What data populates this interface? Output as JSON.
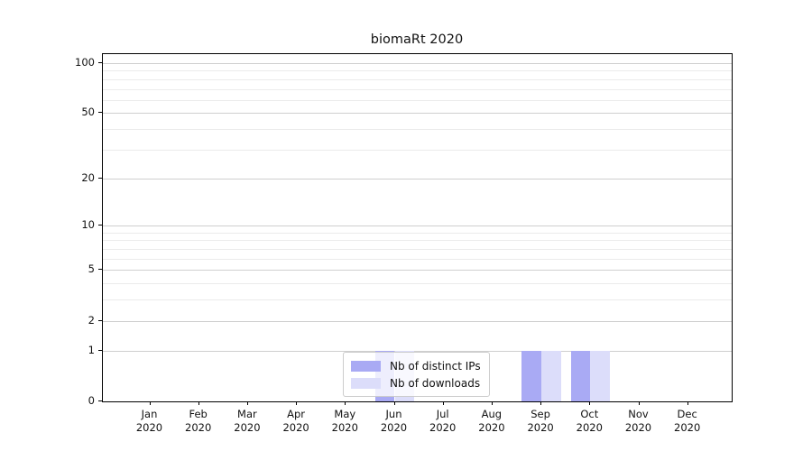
{
  "title": "biomaRt 2020",
  "colors": {
    "distinct_ips_bar": "#a9aaf4",
    "downloads_bar": "#dcddfa",
    "grid_major": "#cfcfcf",
    "grid_minor": "#ebebeb",
    "axis": "#000000",
    "legend_border": "#cccccc"
  },
  "chart_data": {
    "type": "bar",
    "title": "biomaRt 2020",
    "categories": [
      "Jan",
      "Feb",
      "Mar",
      "Apr",
      "May",
      "Jun",
      "Jul",
      "Aug",
      "Sep",
      "Oct",
      "Nov",
      "Dec"
    ],
    "x_year_label": "2020",
    "series": [
      {
        "name": "Nb of distinct IPs",
        "color": "#a9aaf4",
        "values": [
          0,
          0,
          0,
          0,
          0,
          1,
          0,
          0,
          1,
          1,
          0,
          0
        ]
      },
      {
        "name": "Nb of downloads",
        "color": "#dcddfa",
        "values": [
          0,
          0,
          0,
          0,
          0,
          1,
          0,
          0,
          1,
          1,
          0,
          0
        ]
      }
    ],
    "yscale": "log10(value+1)",
    "ylim": [
      0,
      113
    ],
    "ytick_values": [
      0,
      1,
      2,
      5,
      10,
      20,
      50,
      100
    ],
    "ytick_labels": [
      "0",
      "1",
      "2",
      "5",
      "10",
      "20",
      "50",
      "100"
    ],
    "minor_gridline_values": [
      3,
      4,
      6,
      7,
      8,
      9,
      30,
      40,
      60,
      70,
      80,
      90
    ],
    "grid": true,
    "legend_position": "bottom-center"
  },
  "legend": {
    "items": [
      {
        "label": "Nb of distinct IPs",
        "color": "#a9aaf4"
      },
      {
        "label": "Nb of downloads",
        "color": "#dcddfa"
      }
    ]
  }
}
